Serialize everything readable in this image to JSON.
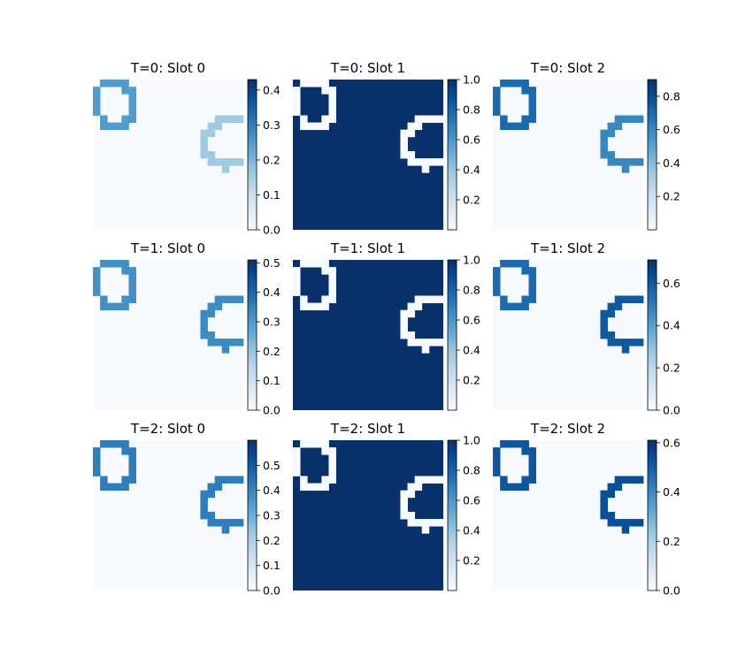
{
  "chart_data": {
    "type": "heatmap",
    "colormap": "Blues",
    "colors": {
      "low": "#f7fbff",
      "high": "#08306b"
    },
    "grid": false,
    "grid_size": [
      21,
      21
    ],
    "shape_rings": [
      {
        "name": "top-left-ring",
        "cells": [
          [
            0,
            1
          ],
          [
            0,
            2
          ],
          [
            0,
            3
          ],
          [
            0,
            4
          ],
          [
            1,
            0
          ],
          [
            1,
            4
          ],
          [
            1,
            5
          ],
          [
            2,
            0
          ],
          [
            2,
            5
          ],
          [
            3,
            0
          ],
          [
            3,
            5
          ],
          [
            4,
            0
          ],
          [
            4,
            5
          ],
          [
            5,
            1
          ],
          [
            5,
            4
          ],
          [
            5,
            5
          ],
          [
            6,
            1
          ],
          [
            6,
            2
          ],
          [
            6,
            3
          ],
          [
            6,
            4
          ]
        ]
      },
      {
        "name": "right-ring",
        "cells": [
          [
            5,
            17
          ],
          [
            5,
            18
          ],
          [
            5,
            19
          ],
          [
            5,
            20
          ],
          [
            6,
            16
          ],
          [
            6,
            17
          ],
          [
            7,
            15
          ],
          [
            7,
            16
          ],
          [
            8,
            15
          ],
          [
            9,
            15
          ],
          [
            10,
            15
          ],
          [
            10,
            16
          ],
          [
            11,
            16
          ],
          [
            11,
            17
          ],
          [
            11,
            18
          ],
          [
            11,
            19
          ],
          [
            11,
            20
          ],
          [
            12,
            18
          ]
        ]
      }
    ],
    "panels": [
      {
        "title": "T=0: Slot 0",
        "colorbar": {
          "min": 0.0,
          "max": 0.43,
          "ticks": [
            "0.0",
            "0.1",
            "0.2",
            "0.3",
            "0.4"
          ]
        },
        "background": 0.0,
        "rings": [
          0.25,
          0.16
        ]
      },
      {
        "title": "T=0: Slot 1",
        "colorbar": {
          "min": 0.0,
          "max": 1.0,
          "ticks": [
            "0.2",
            "0.4",
            "0.6",
            "0.8",
            "1.0"
          ]
        },
        "background": 1.0,
        "rings": [
          0.0,
          0.0
        ]
      },
      {
        "title": "T=0: Slot 2",
        "colorbar": {
          "min": 0.0,
          "max": 0.9,
          "ticks": [
            "0.2",
            "0.4",
            "0.6",
            "0.8"
          ]
        },
        "background": 0.0,
        "rings": [
          0.7,
          0.6
        ]
      },
      {
        "title": "T=1: Slot 0",
        "colorbar": {
          "min": 0.0,
          "max": 0.51,
          "ticks": [
            "0.0",
            "0.1",
            "0.2",
            "0.3",
            "0.4",
            "0.5"
          ]
        },
        "background": 0.0,
        "rings": [
          0.32,
          0.33
        ]
      },
      {
        "title": "T=1: Slot 1",
        "colorbar": {
          "min": 0.0,
          "max": 1.0,
          "ticks": [
            "0.2",
            "0.4",
            "0.6",
            "0.8",
            "1.0"
          ]
        },
        "background": 1.0,
        "rings": [
          0.0,
          0.0
        ]
      },
      {
        "title": "T=1: Slot 2",
        "colorbar": {
          "min": 0.0,
          "max": 0.71,
          "ticks": [
            "0.0",
            "0.2",
            "0.4",
            "0.6"
          ]
        },
        "background": 0.0,
        "rings": [
          0.55,
          0.6
        ]
      },
      {
        "title": "T=2: Slot 0",
        "colorbar": {
          "min": 0.0,
          "max": 0.6,
          "ticks": [
            "0.0",
            "0.1",
            "0.2",
            "0.3",
            "0.4",
            "0.5"
          ]
        },
        "background": 0.0,
        "rings": [
          0.42,
          0.42
        ]
      },
      {
        "title": "T=2: Slot 1",
        "colorbar": {
          "min": 0.0,
          "max": 1.0,
          "ticks": [
            "0.2",
            "0.4",
            "0.6",
            "0.8",
            "1.0"
          ]
        },
        "background": 1.0,
        "rings": [
          0.0,
          0.0
        ]
      },
      {
        "title": "T=2: Slot 2",
        "colorbar": {
          "min": 0.0,
          "max": 0.61,
          "ticks": [
            "0.0",
            "0.2",
            "0.4",
            "0.6"
          ]
        },
        "background": 0.0,
        "rings": [
          0.52,
          0.54
        ]
      }
    ]
  }
}
